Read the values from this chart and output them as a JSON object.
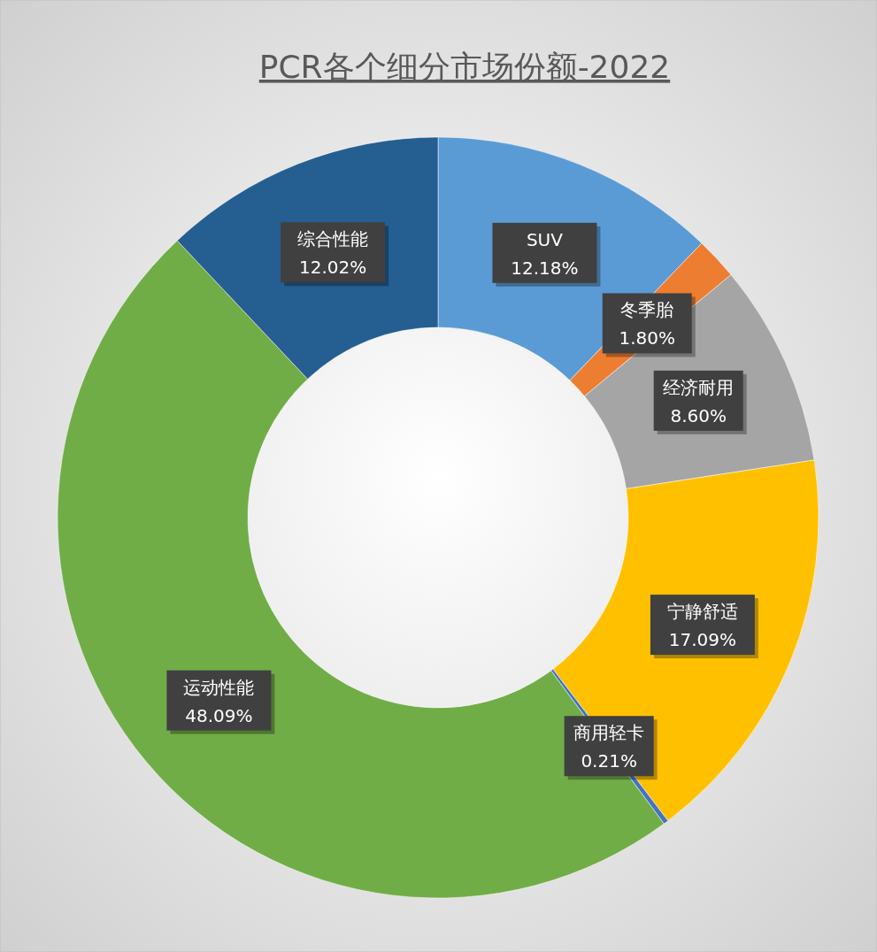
{
  "chart_data": {
    "type": "donut",
    "title": "PCR各个细分市场份额-2022",
    "categories": [
      "SUV",
      "冬季胎",
      "经济耐用",
      "宁静舒适",
      "商用轻卡",
      "运动性能",
      "综合性能"
    ],
    "values": [
      12.18,
      1.8,
      8.6,
      17.09,
      0.21,
      48.09,
      12.02
    ],
    "value_labels": [
      "12.18%",
      "1.80%",
      "8.60%",
      "17.09%",
      "0.21%",
      "48.09%",
      "12.02%"
    ],
    "colors": [
      "#5b9bd5",
      "#ed7d31",
      "#a5a5a5",
      "#ffc000",
      "#4472c4",
      "#70ad47",
      "#255e91"
    ]
  }
}
